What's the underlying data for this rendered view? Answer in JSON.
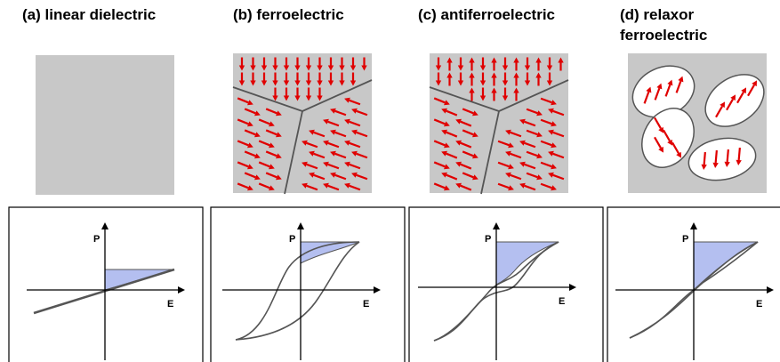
{
  "panels": [
    {
      "title": [
        "(a) linear dielectric"
      ],
      "p_label": "P",
      "e_label": "E"
    },
    {
      "title": [
        "(b) ferroelectric"
      ],
      "p_label": "P",
      "e_label": "E"
    },
    {
      "title": [
        "(c) antiferroelectric"
      ],
      "p_label": "P",
      "e_label": "E"
    },
    {
      "title": [
        "(d) relaxor",
        "ferroelectric"
      ],
      "p_label": "P",
      "e_label": "E"
    }
  ]
}
